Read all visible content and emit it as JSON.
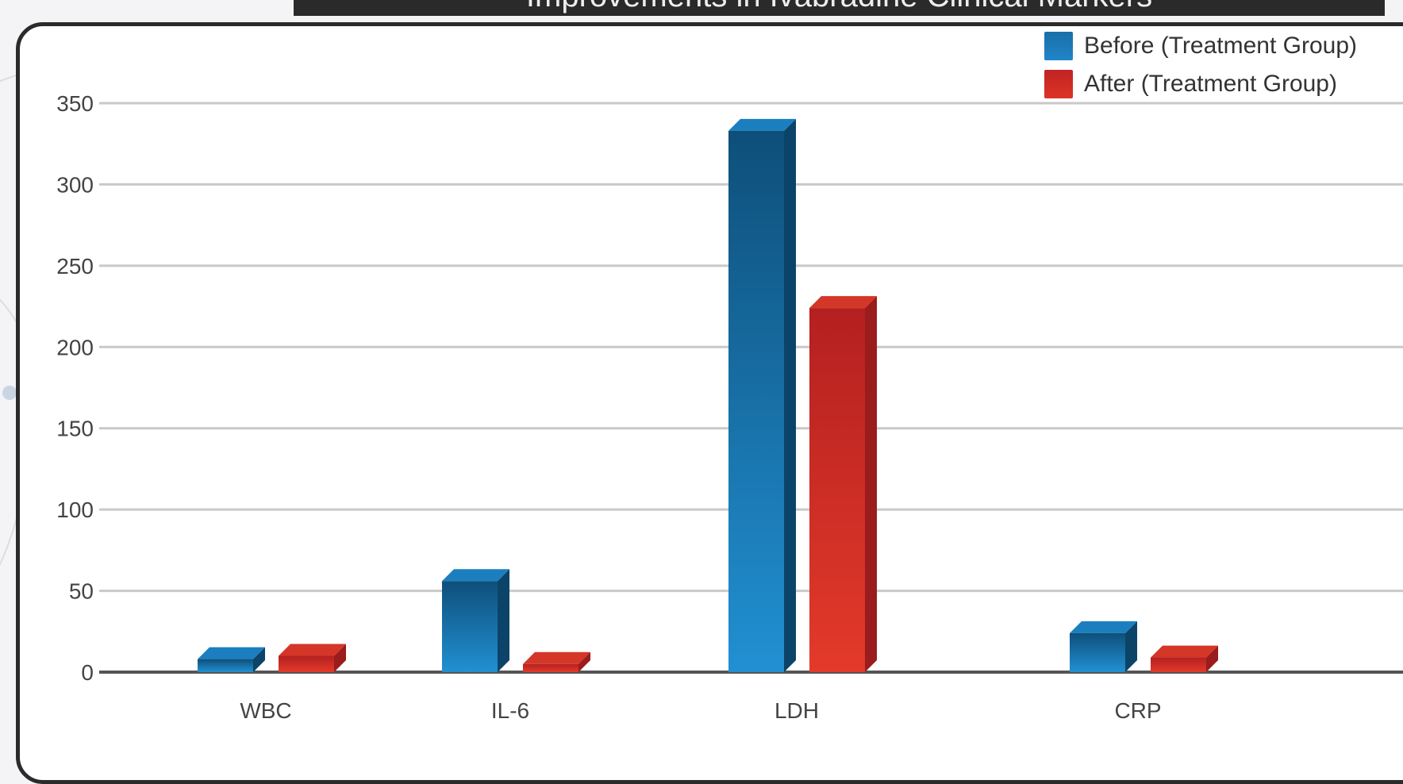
{
  "title": "Improvements in Ivabradine Clinical Markers",
  "chart_data": {
    "type": "bar",
    "title": "Improvements in Ivabradine Clinical Markers",
    "xlabel": "",
    "ylabel": "",
    "categories": [
      "WBC",
      "IL-6",
      "LDH",
      "CRP"
    ],
    "series": [
      {
        "name": "Before (Treatment Group)",
        "color": "#1a72aa",
        "values": [
          8,
          56,
          333,
          24
        ]
      },
      {
        "name": "After (Treatment Group)",
        "color": "#c82a2a",
        "values": [
          10,
          5,
          224,
          9
        ]
      }
    ],
    "ylim": [
      0,
      350
    ],
    "yticks": [
      0,
      50,
      100,
      150,
      200,
      250,
      300,
      350
    ],
    "grid": true,
    "legend": "top-right"
  }
}
